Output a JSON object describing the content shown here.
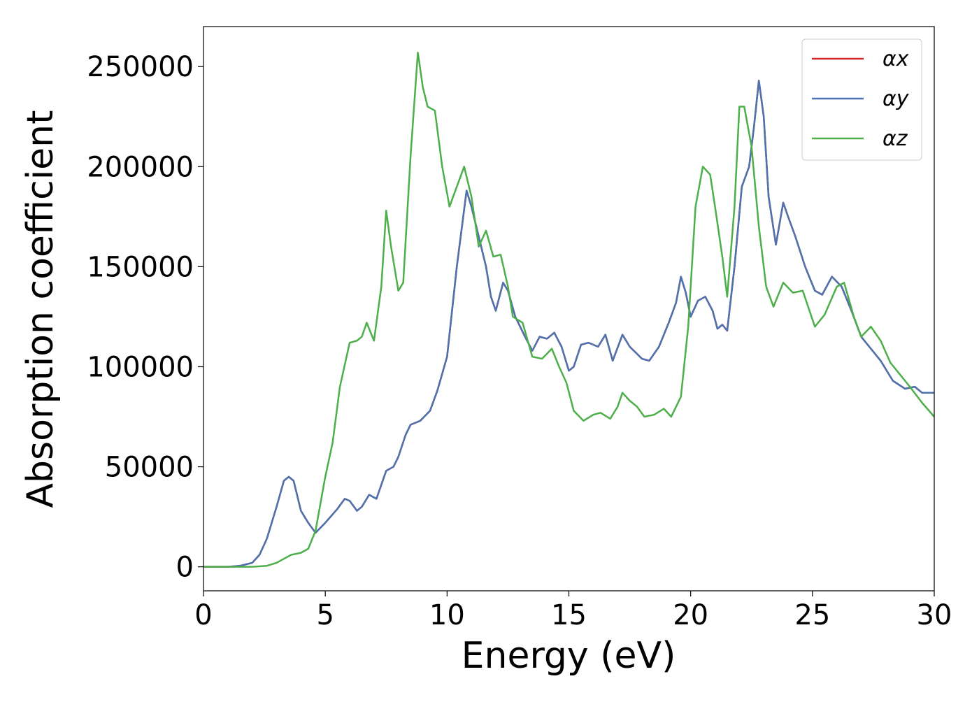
{
  "chart_data": {
    "type": "line",
    "xlabel": "Energy (eV)",
    "ylabel": "Absorption coefficient",
    "xlim": [
      0,
      30
    ],
    "ylim": [
      -12000,
      270000
    ],
    "xticks": [
      0,
      5,
      10,
      15,
      20,
      25,
      30
    ],
    "yticks": [
      0,
      50000,
      100000,
      150000,
      200000,
      250000
    ],
    "legend": "upper right",
    "series": [
      {
        "name": "αx",
        "color": "#d62728",
        "x": [
          0,
          1,
          1.5,
          2,
          2.3,
          2.6,
          3,
          3.3,
          3.5,
          3.7,
          4,
          4.3,
          4.6,
          5,
          5.5,
          5.8,
          6,
          6.3,
          6.5,
          6.8,
          7.1,
          7.5,
          7.8,
          8,
          8.3,
          8.5,
          8.9,
          9.3,
          9.6,
          10,
          10.4,
          10.8,
          11,
          11.3,
          11.6,
          11.8,
          12,
          12.3,
          12.5,
          12.8,
          13.2,
          13.5,
          13.8,
          14.1,
          14.4,
          14.7,
          15,
          15.2,
          15.5,
          15.8,
          16.2,
          16.5,
          16.8,
          17.2,
          17.5,
          18,
          18.3,
          18.7,
          19.1,
          19.4,
          19.6,
          19.8,
          20,
          20.3,
          20.6,
          20.9,
          21.1,
          21.3,
          21.5,
          21.8,
          22.1,
          22.4,
          22.6,
          22.8,
          23,
          23.2,
          23.5,
          23.8,
          24,
          24.3,
          24.7,
          25.1,
          25.4,
          25.8,
          26.2,
          26.6,
          27,
          27.4,
          27.8,
          28.3,
          28.8,
          29.2,
          29.5,
          30
        ],
        "values": [
          0,
          0,
          500,
          2000,
          6000,
          14000,
          30000,
          43000,
          45000,
          43000,
          28000,
          22000,
          17000,
          22000,
          29000,
          34000,
          33000,
          28000,
          30000,
          36000,
          34000,
          48000,
          50000,
          55000,
          66000,
          71000,
          73000,
          78000,
          88000,
          105000,
          150000,
          188000,
          180000,
          165000,
          150000,
          135000,
          128000,
          142000,
          138000,
          125000,
          115000,
          108000,
          115000,
          114000,
          117000,
          110000,
          98000,
          100000,
          111000,
          112000,
          110000,
          116000,
          103000,
          116000,
          110000,
          104000,
          103000,
          110000,
          122000,
          132000,
          145000,
          137000,
          125000,
          133000,
          135000,
          128000,
          119000,
          121000,
          118000,
          150000,
          190000,
          200000,
          220000,
          243000,
          225000,
          185000,
          161000,
          182000,
          175000,
          165000,
          150000,
          138000,
          136000,
          145000,
          140000,
          128000,
          115000,
          109000,
          103000,
          93000,
          89000,
          90000,
          87000,
          87000
        ]
      },
      {
        "name": "αy",
        "color": "#4c72b0",
        "x": [
          0,
          1,
          1.5,
          2,
          2.3,
          2.6,
          3,
          3.3,
          3.5,
          3.7,
          4,
          4.3,
          4.6,
          5,
          5.5,
          5.8,
          6,
          6.3,
          6.5,
          6.8,
          7.1,
          7.5,
          7.8,
          8,
          8.3,
          8.5,
          8.9,
          9.3,
          9.6,
          10,
          10.4,
          10.8,
          11,
          11.3,
          11.6,
          11.8,
          12,
          12.3,
          12.5,
          12.8,
          13.2,
          13.5,
          13.8,
          14.1,
          14.4,
          14.7,
          15,
          15.2,
          15.5,
          15.8,
          16.2,
          16.5,
          16.8,
          17.2,
          17.5,
          18,
          18.3,
          18.7,
          19.1,
          19.4,
          19.6,
          19.8,
          20,
          20.3,
          20.6,
          20.9,
          21.1,
          21.3,
          21.5,
          21.8,
          22.1,
          22.4,
          22.6,
          22.8,
          23,
          23.2,
          23.5,
          23.8,
          24,
          24.3,
          24.7,
          25.1,
          25.4,
          25.8,
          26.2,
          26.6,
          27,
          27.4,
          27.8,
          28.3,
          28.8,
          29.2,
          29.5,
          30
        ],
        "values": [
          0,
          0,
          500,
          2000,
          6000,
          14000,
          30000,
          43000,
          45000,
          43000,
          28000,
          22000,
          17000,
          22000,
          29000,
          34000,
          33000,
          28000,
          30000,
          36000,
          34000,
          48000,
          50000,
          55000,
          66000,
          71000,
          73000,
          78000,
          88000,
          105000,
          150000,
          188000,
          180000,
          165000,
          150000,
          135000,
          128000,
          142000,
          138000,
          125000,
          115000,
          108000,
          115000,
          114000,
          117000,
          110000,
          98000,
          100000,
          111000,
          112000,
          110000,
          116000,
          103000,
          116000,
          110000,
          104000,
          103000,
          110000,
          122000,
          132000,
          145000,
          137000,
          125000,
          133000,
          135000,
          128000,
          119000,
          121000,
          118000,
          150000,
          190000,
          200000,
          220000,
          243000,
          225000,
          185000,
          161000,
          182000,
          175000,
          165000,
          150000,
          138000,
          136000,
          145000,
          140000,
          128000,
          115000,
          109000,
          103000,
          93000,
          89000,
          90000,
          87000,
          87000
        ]
      },
      {
        "name": "αz",
        "color": "#4daf4a",
        "x": [
          0,
          2,
          2.6,
          3,
          3.3,
          3.6,
          4,
          4.3,
          4.6,
          5,
          5.3,
          5.6,
          6,
          6.3,
          6.5,
          6.7,
          7,
          7.3,
          7.5,
          7.7,
          8,
          8.2,
          8.5,
          8.8,
          9,
          9.2,
          9.5,
          9.8,
          10.1,
          10.4,
          10.7,
          11,
          11.3,
          11.6,
          11.9,
          12.2,
          12.5,
          12.7,
          13.1,
          13.5,
          13.9,
          14.3,
          14.6,
          14.9,
          15.2,
          15.6,
          16,
          16.3,
          16.7,
          17,
          17.2,
          17.5,
          17.8,
          18.1,
          18.5,
          18.9,
          19.2,
          19.6,
          19.9,
          20.2,
          20.5,
          20.8,
          21,
          21.3,
          21.5,
          21.8,
          22,
          22.2,
          22.5,
          22.8,
          23.1,
          23.4,
          23.8,
          24.2,
          24.6,
          25.1,
          25.5,
          26,
          26.3,
          26.7,
          27,
          27.4,
          27.8,
          28.2,
          28.6,
          29,
          29.5,
          30
        ],
        "values": [
          0,
          0,
          500,
          2000,
          4000,
          6000,
          7000,
          9000,
          18000,
          45000,
          62000,
          90000,
          112000,
          113000,
          115000,
          122000,
          113000,
          140000,
          178000,
          160000,
          138000,
          142000,
          205000,
          257000,
          240000,
          230000,
          228000,
          200000,
          180000,
          190000,
          200000,
          185000,
          160000,
          168000,
          155000,
          156000,
          140000,
          125000,
          122000,
          105000,
          104000,
          109000,
          100000,
          92000,
          78000,
          73000,
          76000,
          77000,
          74000,
          80000,
          87000,
          83000,
          80000,
          75000,
          76000,
          79000,
          75000,
          85000,
          120000,
          180000,
          200000,
          196000,
          180000,
          155000,
          135000,
          180000,
          230000,
          230000,
          210000,
          170000,
          140000,
          130000,
          142000,
          137000,
          138000,
          120000,
          126000,
          140000,
          142000,
          125000,
          115000,
          120000,
          113000,
          102000,
          96000,
          90000,
          82000,
          75000
        ]
      }
    ]
  }
}
